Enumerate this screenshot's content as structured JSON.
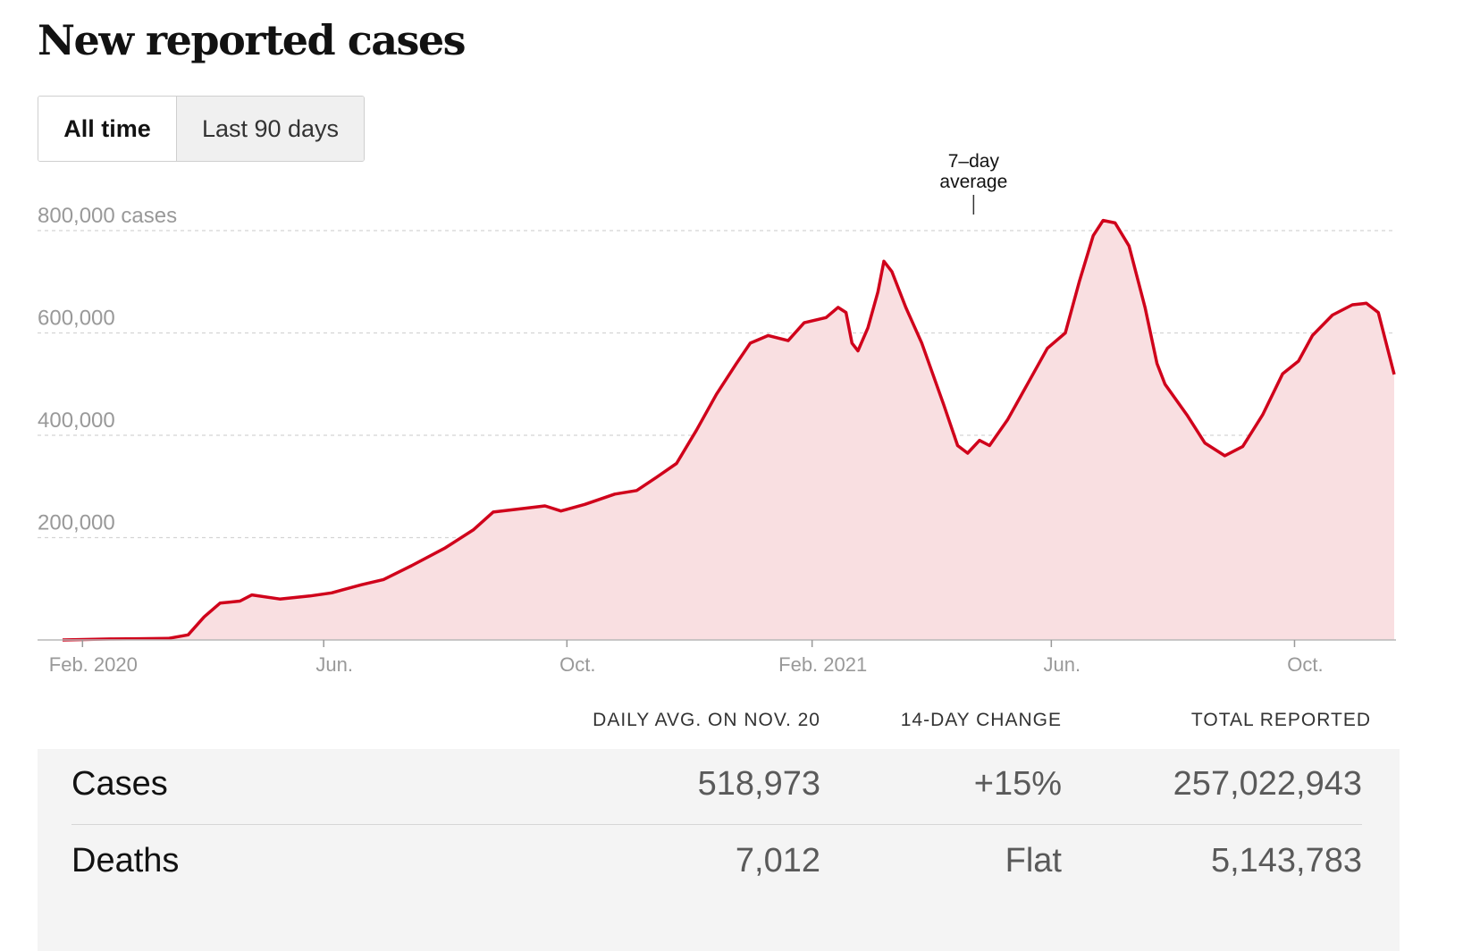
{
  "header": {
    "title": "New reported cases"
  },
  "toggle": {
    "all_time": "All time",
    "last_90_days": "Last 90 days"
  },
  "chart_data": {
    "type": "area",
    "title": "New reported cases",
    "ylabel": "cases",
    "ylim": [
      0,
      800000
    ],
    "yticks": [
      {
        "value": 200000,
        "label": "200,000"
      },
      {
        "value": 400000,
        "label": "400,000"
      },
      {
        "value": 600000,
        "label": "600,000"
      },
      {
        "value": 800000,
        "label": "800,000 cases"
      }
    ],
    "xlim": [
      "2020-01-22",
      "2021-11-20"
    ],
    "xticks": [
      {
        "date": "2020-02-01",
        "label": "Feb. 2020"
      },
      {
        "date": "2020-06-01",
        "label": "Jun."
      },
      {
        "date": "2020-10-01",
        "label": "Oct."
      },
      {
        "date": "2021-02-01",
        "label": "Feb. 2021"
      },
      {
        "date": "2021-06-01",
        "label": "Jun."
      },
      {
        "date": "2021-10-01",
        "label": "Oct."
      }
    ],
    "annotation": {
      "text_line1": "7–day",
      "text_line2": "average",
      "date": "2021-04-23"
    },
    "series": [
      {
        "color": "#d0021b",
        "fill": "#f9dfe1",
        "points": [
          [
            "2020-01-22",
            0
          ],
          [
            "2020-02-15",
            2000
          ],
          [
            "2020-03-01",
            2500
          ],
          [
            "2020-03-15",
            3000
          ],
          [
            "2020-03-25",
            10000
          ],
          [
            "2020-04-02",
            45000
          ],
          [
            "2020-04-10",
            72000
          ],
          [
            "2020-04-20",
            76000
          ],
          [
            "2020-04-26",
            88000
          ],
          [
            "2020-05-10",
            80000
          ],
          [
            "2020-05-25",
            86000
          ],
          [
            "2020-06-05",
            92000
          ],
          [
            "2020-06-20",
            108000
          ],
          [
            "2020-07-01",
            118000
          ],
          [
            "2020-07-15",
            145000
          ],
          [
            "2020-08-01",
            180000
          ],
          [
            "2020-08-15",
            215000
          ],
          [
            "2020-08-25",
            250000
          ],
          [
            "2020-09-05",
            255000
          ],
          [
            "2020-09-20",
            262000
          ],
          [
            "2020-09-28",
            252000
          ],
          [
            "2020-10-10",
            265000
          ],
          [
            "2020-10-25",
            285000
          ],
          [
            "2020-11-05",
            292000
          ],
          [
            "2020-11-15",
            318000
          ],
          [
            "2020-11-25",
            345000
          ],
          [
            "2020-12-05",
            410000
          ],
          [
            "2020-12-15",
            480000
          ],
          [
            "2020-12-25",
            540000
          ],
          [
            "2021-01-01",
            580000
          ],
          [
            "2021-01-10",
            595000
          ],
          [
            "2021-01-20",
            585000
          ],
          [
            "2021-01-28",
            620000
          ],
          [
            "2021-02-08",
            630000
          ],
          [
            "2021-02-14",
            650000
          ],
          [
            "2021-02-18",
            640000
          ],
          [
            "2021-02-21",
            580000
          ],
          [
            "2021-02-24",
            565000
          ],
          [
            "2021-03-01",
            610000
          ],
          [
            "2021-03-06",
            680000
          ],
          [
            "2021-03-09",
            740000
          ],
          [
            "2021-03-13",
            720000
          ],
          [
            "2021-03-20",
            650000
          ],
          [
            "2021-03-28",
            580000
          ],
          [
            "2021-04-08",
            460000
          ],
          [
            "2021-04-15",
            380000
          ],
          [
            "2021-04-20",
            365000
          ],
          [
            "2021-04-26",
            390000
          ],
          [
            "2021-05-01",
            380000
          ],
          [
            "2021-05-10",
            430000
          ],
          [
            "2021-05-20",
            500000
          ],
          [
            "2021-05-30",
            570000
          ],
          [
            "2021-06-08",
            600000
          ],
          [
            "2021-06-15",
            700000
          ],
          [
            "2021-06-22",
            790000
          ],
          [
            "2021-06-27",
            820000
          ],
          [
            "2021-07-03",
            815000
          ],
          [
            "2021-07-10",
            770000
          ],
          [
            "2021-07-18",
            650000
          ],
          [
            "2021-07-24",
            540000
          ],
          [
            "2021-07-28",
            500000
          ],
          [
            "2021-08-08",
            440000
          ],
          [
            "2021-08-17",
            385000
          ],
          [
            "2021-08-27",
            360000
          ],
          [
            "2021-09-05",
            378000
          ],
          [
            "2021-09-15",
            440000
          ],
          [
            "2021-09-25",
            520000
          ],
          [
            "2021-10-03",
            545000
          ],
          [
            "2021-10-10",
            595000
          ],
          [
            "2021-10-20",
            635000
          ],
          [
            "2021-10-30",
            655000
          ],
          [
            "2021-11-06",
            658000
          ],
          [
            "2021-11-12",
            640000
          ],
          [
            "2021-11-20",
            518973
          ]
        ]
      }
    ]
  },
  "summary": {
    "headers": {
      "daily_avg": "DAILY AVG. ON NOV. 20",
      "change": "14-DAY CHANGE",
      "total": "TOTAL REPORTED"
    },
    "rows": [
      {
        "label": "Cases",
        "daily_avg": "518,973",
        "change": "+15%",
        "total": "257,022,943"
      },
      {
        "label": "Deaths",
        "daily_avg": "7,012",
        "change": "Flat",
        "total": "5,143,783"
      }
    ]
  }
}
